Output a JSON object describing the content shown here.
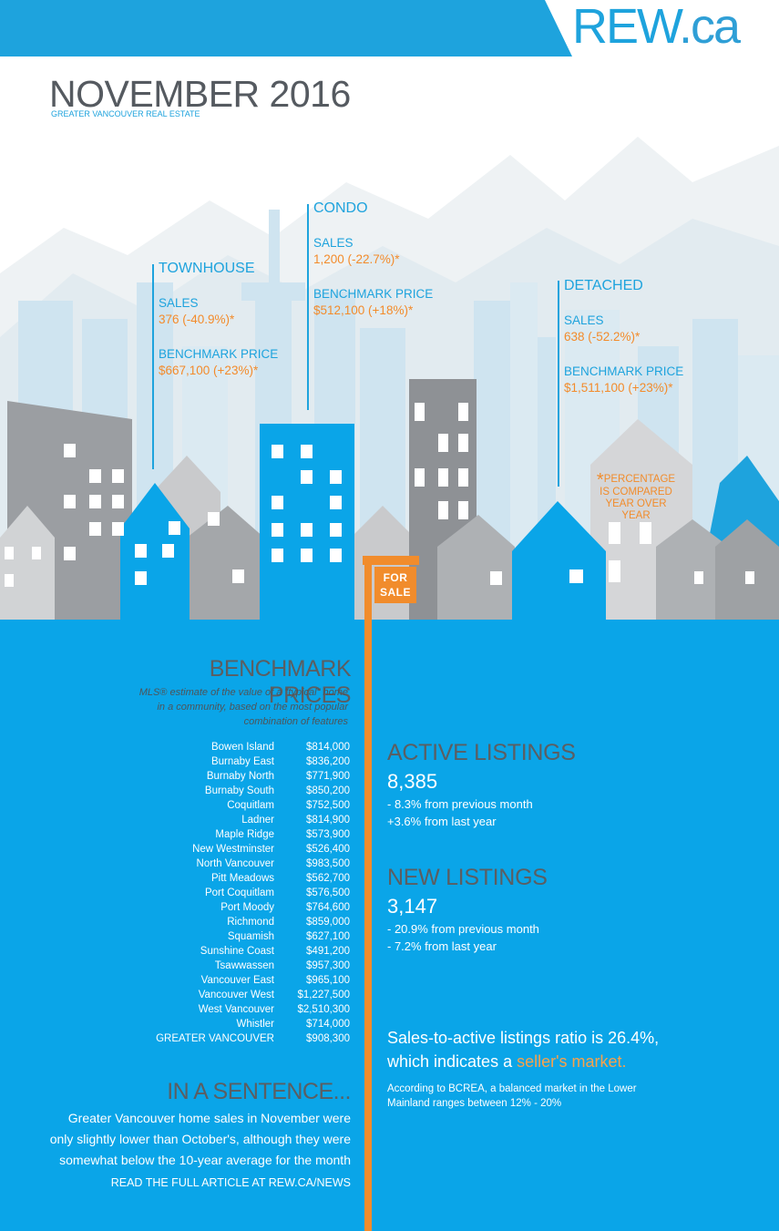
{
  "header": {
    "logo_main": "REW",
    "logo_tld": ".ca"
  },
  "title": "NOVEMBER 2016",
  "subtitle": "GREATER VANCOUVER REAL ESTATE",
  "categories": [
    {
      "name": "TOWNHOUSE",
      "sales_label": "SALES",
      "sales_value": "376 (-40.9%)*",
      "price_label": "BENCHMARK PRICE",
      "price_value": "$667,100 (+23%)*"
    },
    {
      "name": "CONDO",
      "sales_label": "SALES",
      "sales_value": "1,200 (-22.7%)*",
      "price_label": "BENCHMARK PRICE",
      "price_value": "$512,100 (+18%)*"
    },
    {
      "name": "DETACHED",
      "sales_label": "SALES",
      "sales_value": "638 (-52.2%)*",
      "price_label": "BENCHMARK PRICE",
      "price_value": "$1,511,100 (+23%)*"
    }
  ],
  "footnote": {
    "star": "*",
    "line1": "PERCENTAGE",
    "line2": "IS COMPARED",
    "line3": "YEAR OVER YEAR"
  },
  "sign": {
    "line1": "FOR",
    "line2": "SALE"
  },
  "benchmark": {
    "title": "BENCHMARK PRICES",
    "description_line1": "MLS® estimate of the value of a \"typical\" home",
    "description_line2": "in a community, based on the most popular",
    "description_line3": "combination of features",
    "rows": [
      {
        "name": "Bowen Island",
        "price": "$814,000"
      },
      {
        "name": "Burnaby East",
        "price": "$836,200"
      },
      {
        "name": "Burnaby North",
        "price": "$771,900"
      },
      {
        "name": "Burnaby South",
        "price": "$850,200"
      },
      {
        "name": "Coquitlam",
        "price": "$752,500"
      },
      {
        "name": "Ladner",
        "price": "$814,900"
      },
      {
        "name": "Maple Ridge",
        "price": "$573,900"
      },
      {
        "name": "New Westminster",
        "price": "$526,400"
      },
      {
        "name": "North Vancouver",
        "price": "$983,500"
      },
      {
        "name": "Pitt Meadows",
        "price": "$562,700"
      },
      {
        "name": "Port Coquitlam",
        "price": "$576,500"
      },
      {
        "name": "Port Moody",
        "price": "$764,600"
      },
      {
        "name": "Richmond",
        "price": "$859,000"
      },
      {
        "name": "Squamish",
        "price": "$627,100"
      },
      {
        "name": "Sunshine Coast",
        "price": "$491,200"
      },
      {
        "name": "Tsawwassen",
        "price": "$957,300"
      },
      {
        "name": "Vancouver East",
        "price": "$965,100"
      },
      {
        "name": "Vancouver West",
        "price": "$1,227,500"
      },
      {
        "name": "West Vancouver",
        "price": "$2,510,300"
      },
      {
        "name": "Whistler",
        "price": "$714,000"
      },
      {
        "name": "GREATER VANCOUVER",
        "price": "$908,300"
      }
    ]
  },
  "sentence": {
    "title": "IN A SENTENCE...",
    "line1": "Greater Vancouver home sales in November were",
    "line2": "only slightly lower than October's, although they were",
    "line3": "somewhat below the 10-year average for the month",
    "read_more": "READ THE FULL ARTICLE AT REW.CA/NEWS"
  },
  "active_listings": {
    "title": "ACTIVE LISTINGS",
    "value": "8,385",
    "line1": "- 8.3% from previous month",
    "line2": "+3.6% from last year"
  },
  "new_listings": {
    "title": "NEW LISTINGS",
    "value": "3,147",
    "line1": "- 20.9% from previous month",
    "line2": "- 7.2% from last year"
  },
  "ratio": {
    "line1": "Sales-to-active listings ratio is 26.4%,",
    "line2_prefix": "which indicates a ",
    "highlight": "seller's  market.",
    "note_line1": "According to BCREA, a balanced market in the Lower",
    "note_line2": "Mainland ranges between 12% - 20%"
  },
  "colors": {
    "brand_blue": "#1ea3dd",
    "bottom_blue": "#0aa5e8",
    "accent_orange": "#f18c2c",
    "heading_gray": "#5b5e62"
  }
}
